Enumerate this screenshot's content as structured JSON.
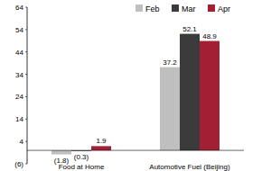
{
  "chart_data": {
    "type": "bar",
    "categories": [
      "Food at Home",
      "Automotive Fuel (Beijing)"
    ],
    "series": [
      {
        "name": "Feb",
        "color": "#bfbfbf",
        "values": [
          -1.8,
          37.2
        ],
        "value_labels": [
          "(1.8)",
          "37.2"
        ]
      },
      {
        "name": "Mar",
        "color": "#3b3b3b",
        "values": [
          -0.3,
          52.1
        ],
        "value_labels": [
          "(0.3)",
          "52.1"
        ]
      },
      {
        "name": "Apr",
        "color": "#a31f34",
        "values": [
          1.9,
          48.9
        ],
        "value_labels": [
          "1.9",
          "48.9"
        ]
      }
    ],
    "ylim": [
      -6,
      64
    ],
    "yticks": [
      {
        "value": -6,
        "label": "(6)"
      },
      4,
      14,
      24,
      34,
      44,
      54,
      64
    ],
    "grid": false,
    "legend": "top",
    "data_labels": true
  }
}
